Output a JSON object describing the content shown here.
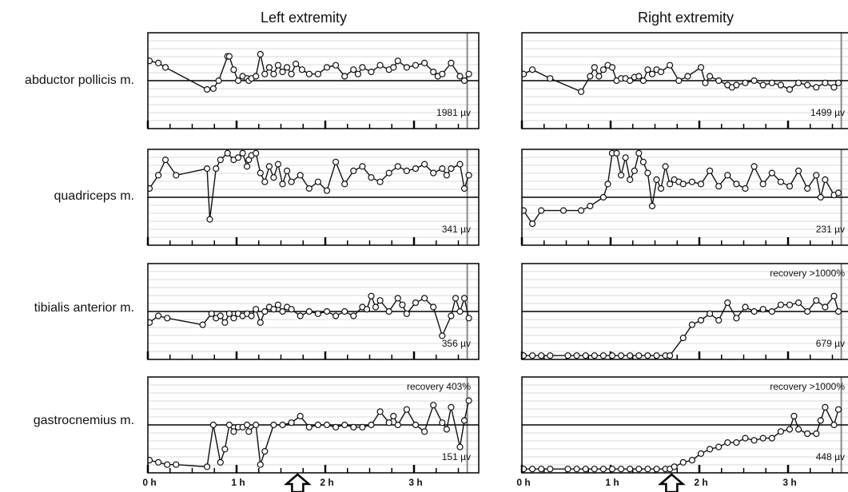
{
  "column_titles": [
    "Left extremity",
    "Right extremity"
  ],
  "row_labels": [
    "abductor pollicis m.",
    "quadriceps m.",
    "tibialis anterior m.",
    "gastrocnemius m."
  ],
  "x_ticks": [
    "0 h",
    "1 h",
    "2 h",
    "3 h"
  ],
  "marker": "up-arrow-icon",
  "colors": {
    "line": "#111111",
    "grid": "#d8d8d8",
    "axis": "#000000"
  },
  "chart_data": [
    {
      "type": "line",
      "extremity": "Left extremity",
      "muscle": "abductor pollicis m.",
      "amplitude_label": "1981 µv",
      "recovery_label": "",
      "xlim": [
        0,
        3.65
      ],
      "ylim": [
        -1,
        1
      ],
      "grid": true,
      "x": [
        0.0,
        0.1,
        0.18,
        0.65,
        0.72,
        0.78,
        0.88,
        0.9,
        0.95,
        1.0,
        1.05,
        1.1,
        1.12,
        1.15,
        1.2,
        1.25,
        1.3,
        1.35,
        1.4,
        1.45,
        1.5,
        1.55,
        1.6,
        1.65,
        1.72,
        1.8,
        1.9,
        2.0,
        2.1,
        2.2,
        2.3,
        2.35,
        2.4,
        2.5,
        2.6,
        2.7,
        2.75,
        2.8,
        2.9,
        3.0,
        3.1,
        3.2,
        3.25,
        3.3,
        3.4,
        3.5,
        3.55,
        3.6
      ],
      "y": [
        0.45,
        0.4,
        0.3,
        -0.2,
        -0.18,
        0.0,
        0.55,
        0.55,
        0.25,
        0.0,
        0.1,
        0.05,
        0.0,
        0.05,
        0.1,
        0.6,
        0.15,
        0.3,
        0.15,
        0.35,
        0.2,
        0.3,
        0.15,
        0.38,
        0.25,
        0.15,
        0.15,
        0.3,
        0.35,
        0.1,
        0.25,
        0.15,
        0.3,
        0.2,
        0.35,
        0.25,
        0.3,
        0.45,
        0.3,
        0.35,
        0.4,
        0.2,
        0.1,
        0.15,
        0.4,
        0.1,
        0.0,
        0.15
      ]
    },
    {
      "type": "line",
      "extremity": "Right extremity",
      "muscle": "abductor pollicis m.",
      "amplitude_label": "1499 µv",
      "recovery_label": "",
      "xlim": [
        0,
        3.65
      ],
      "ylim": [
        -1,
        1
      ],
      "grid": true,
      "x": [
        0.0,
        0.1,
        0.3,
        0.65,
        0.75,
        0.8,
        0.85,
        0.9,
        0.95,
        1.0,
        1.05,
        1.1,
        1.15,
        1.2,
        1.25,
        1.3,
        1.35,
        1.4,
        1.45,
        1.5,
        1.55,
        1.65,
        1.75,
        1.85,
        2.0,
        2.05,
        2.1,
        2.2,
        2.3,
        2.35,
        2.4,
        2.5,
        2.6,
        2.7,
        2.8,
        2.9,
        3.0,
        3.1,
        3.2,
        3.3,
        3.4,
        3.5,
        3.55
      ],
      "y": [
        0.15,
        0.25,
        0.05,
        -0.25,
        0.1,
        0.3,
        0.1,
        0.25,
        0.35,
        0.3,
        0.0,
        0.05,
        0.05,
        0.0,
        0.08,
        0.1,
        0.0,
        0.25,
        0.15,
        0.25,
        0.2,
        0.35,
        0.0,
        0.1,
        0.3,
        -0.05,
        0.1,
        0.0,
        -0.1,
        -0.15,
        -0.1,
        -0.05,
        0.0,
        -0.1,
        -0.05,
        -0.1,
        -0.2,
        -0.05,
        -0.1,
        -0.15,
        -0.05,
        -0.15,
        -0.05
      ]
    },
    {
      "type": "line",
      "extremity": "Left extremity",
      "muscle": "quadriceps m.",
      "amplitude_label": "341 µv",
      "recovery_label": "",
      "xlim": [
        0,
        3.65
      ],
      "ylim": [
        -1,
        1
      ],
      "grid": true,
      "x": [
        0.0,
        0.1,
        0.18,
        0.3,
        0.65,
        0.68,
        0.75,
        0.8,
        0.88,
        0.95,
        1.0,
        1.05,
        1.1,
        1.12,
        1.15,
        1.2,
        1.25,
        1.3,
        1.35,
        1.4,
        1.45,
        1.5,
        1.55,
        1.6,
        1.7,
        1.8,
        1.9,
        2.0,
        2.1,
        2.2,
        2.3,
        2.4,
        2.5,
        2.6,
        2.7,
        2.8,
        2.9,
        3.0,
        3.1,
        3.2,
        3.3,
        3.35,
        3.4,
        3.5,
        3.55,
        3.6
      ],
      "y": [
        0.2,
        0.5,
        0.85,
        0.5,
        0.65,
        -0.5,
        0.65,
        0.85,
        1.0,
        0.85,
        0.9,
        1.0,
        0.7,
        0.85,
        0.95,
        1.0,
        0.55,
        0.35,
        0.7,
        0.45,
        0.75,
        0.3,
        0.6,
        0.35,
        0.5,
        0.2,
        0.35,
        0.15,
        0.8,
        0.3,
        0.6,
        0.7,
        0.45,
        0.35,
        0.55,
        0.7,
        0.6,
        0.65,
        0.75,
        0.55,
        0.65,
        0.5,
        0.65,
        0.75,
        0.2,
        0.5
      ]
    },
    {
      "type": "line",
      "extremity": "Right extremity",
      "muscle": "quadriceps m.",
      "amplitude_label": "231 µv",
      "recovery_label": "",
      "xlim": [
        0,
        3.65
      ],
      "ylim": [
        -1,
        1
      ],
      "grid": true,
      "x": [
        0.0,
        0.1,
        0.2,
        0.45,
        0.65,
        0.75,
        0.9,
        0.95,
        1.0,
        1.05,
        1.1,
        1.15,
        1.2,
        1.25,
        1.3,
        1.35,
        1.4,
        1.45,
        1.5,
        1.55,
        1.6,
        1.65,
        1.7,
        1.75,
        1.8,
        1.9,
        2.0,
        2.1,
        2.2,
        2.3,
        2.4,
        2.5,
        2.6,
        2.7,
        2.8,
        2.9,
        3.0,
        3.1,
        3.2,
        3.3,
        3.35,
        3.4,
        3.5,
        3.55
      ],
      "y": [
        -0.3,
        -0.6,
        -0.3,
        -0.3,
        -0.3,
        -0.2,
        0.0,
        0.3,
        1.0,
        1.0,
        0.5,
        0.9,
        0.4,
        0.6,
        1.0,
        0.8,
        0.55,
        -0.2,
        0.4,
        0.2,
        0.7,
        0.3,
        0.4,
        0.35,
        0.3,
        0.35,
        0.3,
        0.6,
        0.25,
        0.5,
        0.3,
        0.2,
        0.7,
        0.3,
        0.55,
        0.35,
        0.25,
        0.6,
        0.2,
        0.5,
        0.0,
        0.4,
        0.05,
        0.1
      ]
    },
    {
      "type": "line",
      "extremity": "Left extremity",
      "muscle": "tibialis anterior m.",
      "amplitude_label": "356 µv",
      "recovery_label": "",
      "xlim": [
        0,
        3.65
      ],
      "ylim": [
        -1,
        1
      ],
      "grid": true,
      "x": [
        0.0,
        0.1,
        0.2,
        0.6,
        0.7,
        0.75,
        0.8,
        0.85,
        0.9,
        0.95,
        1.0,
        1.05,
        1.1,
        1.15,
        1.2,
        1.25,
        1.3,
        1.35,
        1.4,
        1.45,
        1.5,
        1.55,
        1.6,
        1.7,
        1.8,
        1.9,
        2.0,
        2.1,
        2.2,
        2.3,
        2.4,
        2.45,
        2.5,
        2.55,
        2.6,
        2.7,
        2.8,
        2.85,
        2.9,
        3.0,
        3.1,
        3.2,
        3.3,
        3.4,
        3.45,
        3.5,
        3.55,
        3.6
      ],
      "y": [
        -0.25,
        -0.1,
        -0.15,
        -0.3,
        -0.05,
        -0.15,
        -0.1,
        -0.25,
        -0.05,
        -0.15,
        -0.05,
        -0.1,
        -0.05,
        -0.1,
        0.05,
        -0.25,
        0.0,
        0.1,
        0.05,
        0.15,
        0.0,
        0.1,
        0.05,
        -0.1,
        0.0,
        -0.05,
        0.0,
        -0.1,
        0.0,
        -0.1,
        0.1,
        0.05,
        0.35,
        0.1,
        0.25,
        0.0,
        0.3,
        0.15,
        -0.05,
        0.2,
        0.3,
        0.1,
        -0.55,
        -0.1,
        0.3,
        0.0,
        0.3,
        -0.15
      ]
    },
    {
      "type": "line",
      "extremity": "Right extremity",
      "muscle": "tibialis anterior m.",
      "amplitude_label": "679 µv",
      "recovery_label": "recovery >1000%",
      "xlim": [
        0,
        3.65
      ],
      "ylim": [
        -1,
        1
      ],
      "grid": true,
      "x": [
        0.0,
        0.1,
        0.2,
        0.3,
        0.5,
        0.6,
        0.7,
        0.8,
        0.9,
        1.0,
        1.1,
        1.2,
        1.3,
        1.4,
        1.5,
        1.6,
        1.65,
        1.8,
        1.9,
        2.0,
        2.1,
        2.2,
        2.3,
        2.4,
        2.5,
        2.6,
        2.7,
        2.8,
        2.9,
        3.0,
        3.1,
        3.2,
        3.3,
        3.4,
        3.5,
        3.55
      ],
      "y": [
        -1.0,
        -1.0,
        -1.0,
        -1.0,
        -1.0,
        -1.0,
        -1.0,
        -1.0,
        -1.0,
        -1.0,
        -1.0,
        -1.0,
        -1.0,
        -1.0,
        -1.0,
        -1.0,
        -1.0,
        -0.6,
        -0.3,
        -0.2,
        -0.05,
        -0.2,
        0.2,
        -0.15,
        0.1,
        0.0,
        0.05,
        0.0,
        0.15,
        0.15,
        0.2,
        0.0,
        0.25,
        0.1,
        0.35,
        0.0
      ]
    },
    {
      "type": "line",
      "extremity": "Left extremity",
      "muscle": "gastrocnemius m.",
      "amplitude_label": "151 µv",
      "recovery_label": "recovery 403%",
      "xlim": [
        0,
        3.65
      ],
      "ylim": [
        -1,
        1
      ],
      "grid": true,
      "x": [
        0.0,
        0.1,
        0.2,
        0.3,
        0.65,
        0.72,
        0.8,
        0.85,
        0.9,
        0.95,
        1.0,
        1.05,
        1.1,
        1.12,
        1.2,
        1.25,
        1.3,
        1.4,
        1.5,
        1.6,
        1.7,
        1.8,
        1.9,
        2.0,
        2.1,
        2.2,
        2.3,
        2.4,
        2.5,
        2.6,
        2.7,
        2.75,
        2.8,
        2.9,
        3.0,
        3.1,
        3.2,
        3.3,
        3.35,
        3.4,
        3.5,
        3.55,
        3.6
      ],
      "y": [
        -0.8,
        -0.85,
        -0.9,
        -0.9,
        -0.95,
        0.0,
        -0.85,
        -0.55,
        0.0,
        -0.15,
        -0.05,
        -0.05,
        0.0,
        -0.15,
        0.0,
        -0.9,
        -0.6,
        0.0,
        0.0,
        0.05,
        0.2,
        -0.05,
        0.0,
        0.0,
        -0.05,
        0.0,
        -0.05,
        -0.05,
        0.0,
        0.3,
        0.05,
        0.2,
        0.0,
        0.35,
        0.0,
        -0.15,
        0.45,
        0.05,
        -0.1,
        0.4,
        -0.5,
        0.1,
        0.55
      ]
    },
    {
      "type": "line",
      "extremity": "Right extremity",
      "muscle": "gastrocnemius m.",
      "amplitude_label": "448 µv",
      "recovery_label": "recovery >1000%",
      "xlim": [
        0,
        3.65
      ],
      "ylim": [
        -1,
        1
      ],
      "grid": true,
      "x": [
        0.0,
        0.1,
        0.2,
        0.3,
        0.5,
        0.6,
        0.7,
        0.8,
        0.9,
        1.0,
        1.1,
        1.2,
        1.3,
        1.4,
        1.5,
        1.6,
        1.65,
        1.7,
        1.8,
        1.9,
        2.0,
        2.1,
        2.2,
        2.3,
        2.4,
        2.5,
        2.6,
        2.7,
        2.8,
        2.9,
        3.0,
        3.05,
        3.1,
        3.2,
        3.3,
        3.35,
        3.4,
        3.5,
        3.55
      ],
      "y": [
        -1.0,
        -1.0,
        -1.0,
        -1.0,
        -1.0,
        -1.0,
        -1.0,
        -1.0,
        -1.0,
        -1.0,
        -1.0,
        -1.0,
        -1.0,
        -1.0,
        -1.0,
        -1.0,
        -1.0,
        -0.95,
        -0.85,
        -0.8,
        -0.65,
        -0.55,
        -0.5,
        -0.4,
        -0.4,
        -0.3,
        -0.35,
        -0.3,
        -0.3,
        -0.15,
        -0.1,
        0.2,
        -0.1,
        -0.2,
        -0.2,
        0.1,
        0.4,
        0.0,
        0.35
      ]
    }
  ]
}
